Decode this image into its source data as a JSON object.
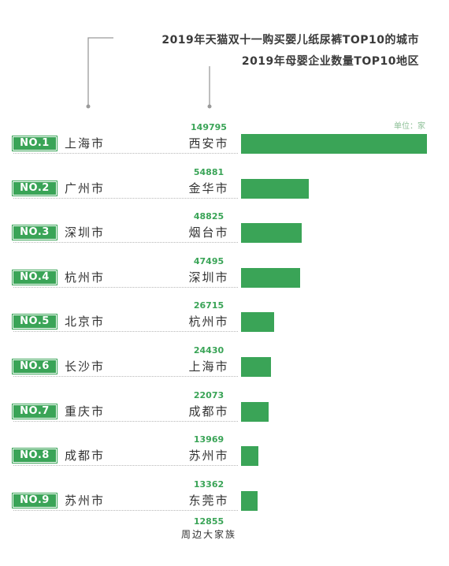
{
  "title": {
    "line1": "2019年天猫双十一购买婴儿纸尿裤TOP10的城市",
    "line2": "2019年母婴企业数量TOP10地区"
  },
  "unit_label": "单位：家",
  "colors": {
    "accent": "#3aa457",
    "text": "#333333",
    "unit": "#8cbf96"
  },
  "chart_data": {
    "type": "bar",
    "orientation": "horizontal",
    "title": "2019年母婴企业数量TOP10地区",
    "unit": "单位：家",
    "ranks": [
      "NO.1",
      "NO.2",
      "NO.3",
      "NO.4",
      "NO.5",
      "NO.6",
      "NO.7",
      "NO.8",
      "NO.9"
    ],
    "left_categories": [
      "上海市",
      "广州市",
      "深圳市",
      "杭州市",
      "北京市",
      "长沙市",
      "重庆市",
      "成都市",
      "苏州市"
    ],
    "categories": [
      "西安市",
      "金华市",
      "烟台市",
      "深圳市",
      "杭州市",
      "上海市",
      "成都市",
      "苏州市",
      "东莞市"
    ],
    "values": [
      149795,
      54881,
      48825,
      47495,
      26715,
      24430,
      22073,
      13969,
      13362
    ],
    "partial_last": {
      "value": "12855",
      "category": "周边大家族"
    },
    "xlim": [
      0,
      149795
    ],
    "grid": false,
    "legend": "none"
  }
}
